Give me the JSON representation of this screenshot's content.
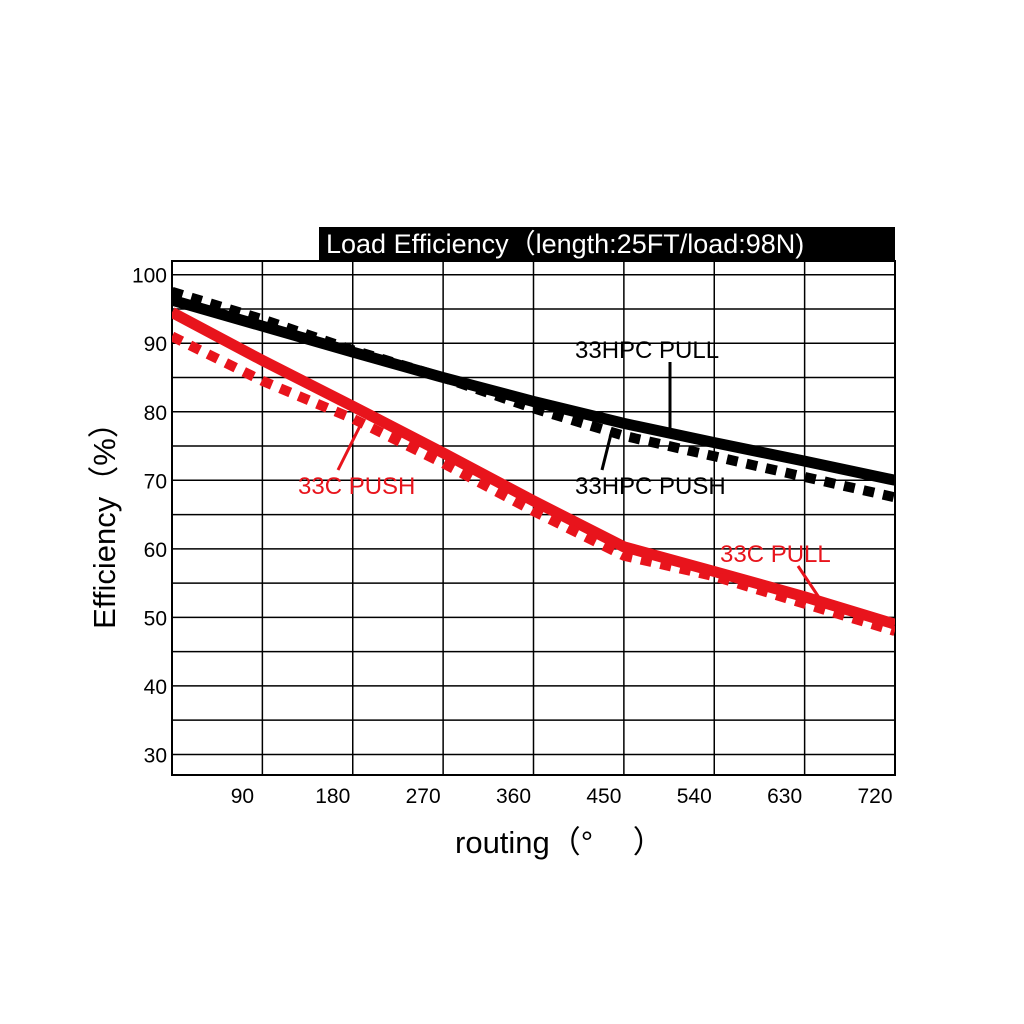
{
  "chart_data": {
    "type": "line",
    "title": "Load Efficiency（length:25FT/load:98N)",
    "xlabel": "routing（°　 ）",
    "ylabel": "Efficiency（%）",
    "x_ticks": [
      "90",
      "180",
      "270",
      "360",
      "450",
      "540",
      "630",
      "720"
    ],
    "y_ticks": [
      "100",
      "90",
      "80",
      "70",
      "60",
      "50",
      "40",
      "30"
    ],
    "xlim": [
      0,
      720
    ],
    "ylim": [
      27,
      102
    ],
    "grid": true,
    "x": [
      0,
      90,
      180,
      270,
      360,
      450,
      540,
      630,
      720
    ],
    "series": [
      {
        "name": "33HPC PULL",
        "color": "#000000",
        "style": "solid",
        "values": [
          96.3,
          92.5,
          88.7,
          85.0,
          81.5,
          78.3,
          75.5,
          72.8,
          70.0
        ]
      },
      {
        "name": "33HPC PUSH",
        "color": "#000000",
        "style": "dashed",
        "values": [
          97.5,
          93.5,
          89.0,
          85.0,
          80.5,
          76.5,
          73.5,
          70.5,
          67.5
        ]
      },
      {
        "name": "33C PUSH",
        "color": "#e8141c",
        "style": "solid",
        "values": [
          94.5,
          87.5,
          80.8,
          74.0,
          67.0,
          60.3,
          56.7,
          53.0,
          49.0
        ]
      },
      {
        "name": "33C PULL",
        "color": "#e8141c",
        "style": "dashed",
        "values": [
          91.0,
          84.5,
          79.0,
          72.5,
          65.5,
          59.0,
          56.0,
          52.0,
          48.0
        ]
      }
    ],
    "annotations": [
      {
        "label": "33HPC PULL",
        "series": 0,
        "color": "#000000"
      },
      {
        "label": "33HPC PUSH",
        "series": 1,
        "color": "#000000"
      },
      {
        "label": "33C PUSH",
        "series": 2,
        "color": "#e8141c"
      },
      {
        "label": "33C PULL",
        "series": 3,
        "color": "#e8141c"
      }
    ]
  }
}
